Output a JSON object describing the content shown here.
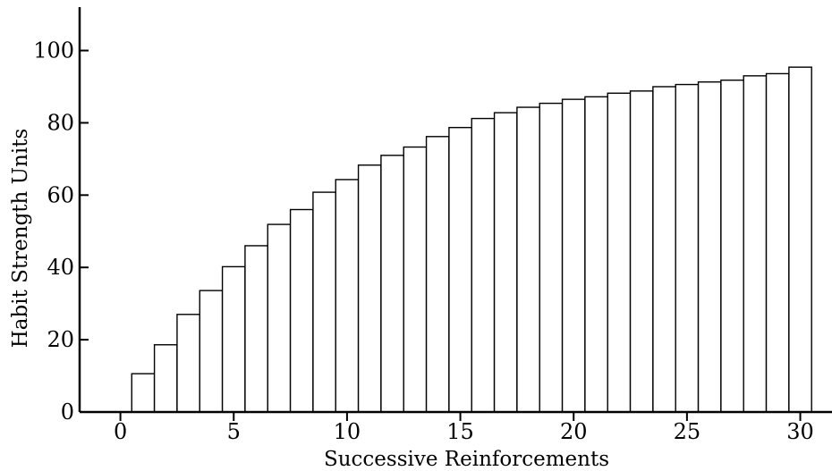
{
  "chart_data": {
    "type": "bar",
    "xlabel": "Successive Reinforcements",
    "ylabel": "Habit Strength Units",
    "xlim": [
      -1.8,
      31.4
    ],
    "ylim": [
      0,
      112
    ],
    "x_ticks": [
      0,
      5,
      10,
      15,
      20,
      25,
      30
    ],
    "y_ticks": [
      0,
      20,
      40,
      60,
      80,
      100
    ],
    "grid": false,
    "legend": "none",
    "bar_fill": "#ffffff",
    "bar_edge": "#000000",
    "x": [
      1,
      2,
      3,
      4,
      5,
      6,
      7,
      8,
      9,
      10,
      11,
      12,
      13,
      14,
      15,
      16,
      17,
      18,
      19,
      20,
      21,
      22,
      23,
      24,
      25,
      26,
      27,
      28,
      29,
      30
    ],
    "values": [
      10.6,
      18.6,
      27,
      33.6,
      40.2,
      46,
      51.9,
      56,
      60.8,
      64.3,
      68.3,
      71,
      73.3,
      76.2,
      78.7,
      81.2,
      82.8,
      84.3,
      85.4,
      86.5,
      87.2,
      88.2,
      88.8,
      90,
      90.6,
      91.3,
      91.8,
      93,
      93.6,
      95.4
    ]
  }
}
